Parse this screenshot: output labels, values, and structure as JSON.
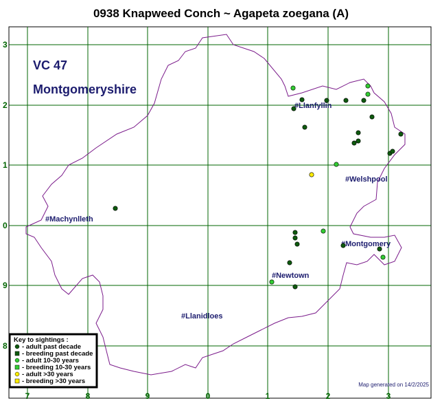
{
  "title": "0938 Knapweed Conch ~ Agapeta zoegana (A)",
  "vice_county": {
    "number": "VC 47",
    "name": "Montgomeryshire"
  },
  "grid": {
    "x_labels": [
      "7",
      "8",
      "9",
      "0",
      "1",
      "2",
      "3"
    ],
    "y_labels": [
      "3",
      "2",
      "1",
      "0",
      "9",
      "8"
    ]
  },
  "places": [
    "#Llanfyllin",
    "#Welshpool",
    "#Machynlleth",
    "#Montgomery",
    "#Newtown",
    "#Llanidloes"
  ],
  "key": {
    "title": "Key to sightings :",
    "items": [
      "- adult past decade",
      "- breeding past decade",
      "- adult 10-30 years",
      "- breeding 10-30 years",
      "- adult >30 years",
      "- breeding >30 years"
    ]
  },
  "footer": "Map generated on 14/2/2025"
}
